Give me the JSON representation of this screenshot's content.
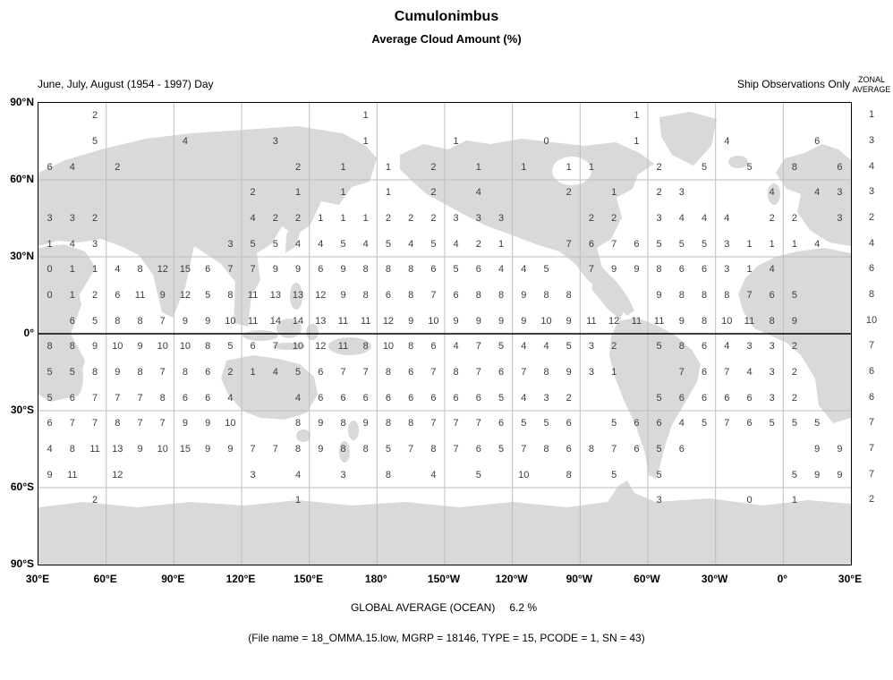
{
  "title": "Cumulonimbus",
  "subtitle": "Average Cloud Amount (%)",
  "period_label": "June, July, August (1954 - 1997) Day",
  "source_label": "Ship Observations Only",
  "zonal_header": {
    "line1": "ZONAL",
    "line2": "AVERAGE"
  },
  "global_average": {
    "label": "GLOBAL AVERAGE (OCEAN)",
    "value": "6.2 %"
  },
  "file_info": "(File name = 18_OMMA.15.low, MGRP = 18146, TYPE = 15, PCODE = 1, SN = 43)",
  "colors": {
    "land": "#d9d9d9",
    "grid": "#bdbdbd",
    "axis": "#000000",
    "value_text": "#3c3c3c"
  },
  "chart_data": {
    "type": "heatmap",
    "title": "Cumulonimbus — Average Cloud Amount (%)",
    "subtitle": "June, July, August (1954 - 1997) Day, Ship Observations Only",
    "units": "percent cloud amount",
    "grid_resolution_deg": 10,
    "lon_start": "30E",
    "x_tick_labels": [
      "30°E",
      "60°E",
      "90°E",
      "120°E",
      "150°E",
      "180°",
      "150°W",
      "120°W",
      "90°W",
      "60°W",
      "30°W",
      "0°",
      "30°E"
    ],
    "y_tick_labels": [
      "90°N",
      "60°N",
      "30°N",
      "0°",
      "30°S",
      "60°S",
      "90°S"
    ],
    "row_lat_centers": [
      85,
      75,
      65,
      55,
      45,
      35,
      25,
      15,
      5,
      -5,
      -15,
      -25,
      -35,
      -45,
      -55,
      -65
    ],
    "rows": [
      [
        null,
        null,
        2,
        null,
        null,
        null,
        null,
        null,
        null,
        null,
        null,
        null,
        null,
        null,
        1,
        null,
        null,
        null,
        null,
        null,
        null,
        null,
        null,
        null,
        null,
        null,
        1,
        null,
        null,
        null,
        null,
        null,
        null,
        null,
        null,
        null
      ],
      [
        null,
        null,
        5,
        null,
        null,
        null,
        4,
        null,
        null,
        null,
        3,
        null,
        null,
        null,
        1,
        null,
        null,
        null,
        1,
        null,
        null,
        null,
        0,
        null,
        null,
        null,
        1,
        null,
        null,
        null,
        4,
        null,
        null,
        null,
        6,
        null
      ],
      [
        6,
        4,
        null,
        2,
        null,
        null,
        null,
        null,
        null,
        null,
        null,
        2,
        null,
        1,
        null,
        1,
        null,
        2,
        null,
        1,
        null,
        1,
        null,
        1,
        1,
        null,
        null,
        2,
        null,
        5,
        null,
        5,
        null,
        8,
        null,
        6
      ],
      [
        null,
        null,
        null,
        null,
        null,
        null,
        null,
        null,
        null,
        2,
        null,
        1,
        null,
        1,
        null,
        1,
        null,
        2,
        null,
        4,
        null,
        null,
        null,
        2,
        null,
        1,
        null,
        2,
        3,
        null,
        null,
        null,
        4,
        null,
        4,
        3
      ],
      [
        3,
        3,
        2,
        null,
        null,
        null,
        null,
        null,
        null,
        4,
        2,
        2,
        1,
        1,
        1,
        2,
        2,
        2,
        3,
        3,
        3,
        null,
        null,
        null,
        2,
        2,
        null,
        3,
        4,
        4,
        4,
        null,
        2,
        2,
        null,
        3
      ],
      [
        1,
        4,
        3,
        null,
        null,
        null,
        null,
        null,
        3,
        5,
        5,
        4,
        4,
        5,
        4,
        5,
        4,
        5,
        4,
        2,
        1,
        null,
        null,
        7,
        6,
        7,
        6,
        5,
        5,
        5,
        3,
        1,
        1,
        1,
        4,
        null
      ],
      [
        0,
        1,
        1,
        4,
        8,
        12,
        15,
        6,
        7,
        7,
        9,
        9,
        6,
        9,
        8,
        8,
        8,
        6,
        5,
        6,
        4,
        4,
        5,
        null,
        7,
        9,
        9,
        8,
        6,
        6,
        3,
        1,
        4,
        null,
        null,
        null
      ],
      [
        0,
        1,
        2,
        6,
        11,
        9,
        12,
        5,
        8,
        11,
        13,
        13,
        12,
        9,
        8,
        6,
        8,
        7,
        6,
        8,
        8,
        9,
        8,
        8,
        null,
        null,
        null,
        9,
        8,
        8,
        8,
        7,
        6,
        5,
        null,
        null
      ],
      [
        null,
        6,
        5,
        8,
        8,
        7,
        9,
        9,
        10,
        11,
        14,
        14,
        13,
        11,
        11,
        12,
        9,
        10,
        9,
        9,
        9,
        9,
        10,
        9,
        11,
        12,
        11,
        11,
        9,
        8,
        10,
        11,
        8,
        9,
        null,
        null
      ],
      [
        8,
        8,
        9,
        10,
        9,
        10,
        10,
        8,
        5,
        6,
        7,
        10,
        12,
        11,
        8,
        10,
        8,
        6,
        4,
        7,
        5,
        4,
        4,
        5,
        3,
        2,
        null,
        5,
        8,
        6,
        4,
        3,
        3,
        2,
        null,
        null
      ],
      [
        5,
        5,
        8,
        9,
        8,
        7,
        8,
        6,
        2,
        1,
        4,
        5,
        6,
        7,
        7,
        8,
        6,
        7,
        8,
        7,
        6,
        7,
        8,
        9,
        3,
        1,
        null,
        null,
        7,
        6,
        7,
        4,
        3,
        2,
        null,
        null
      ],
      [
        5,
        6,
        7,
        7,
        7,
        8,
        6,
        6,
        4,
        null,
        null,
        4,
        6,
        6,
        6,
        6,
        6,
        6,
        6,
        6,
        5,
        4,
        3,
        2,
        null,
        null,
        null,
        5,
        6,
        6,
        6,
        6,
        3,
        2,
        null,
        null
      ],
      [
        6,
        7,
        7,
        8,
        7,
        7,
        9,
        9,
        10,
        null,
        null,
        8,
        9,
        8,
        9,
        8,
        8,
        7,
        7,
        7,
        6,
        5,
        5,
        6,
        null,
        5,
        6,
        6,
        4,
        5,
        7,
        6,
        5,
        5,
        5,
        null
      ],
      [
        4,
        8,
        11,
        13,
        9,
        10,
        15,
        9,
        9,
        7,
        7,
        8,
        9,
        8,
        8,
        5,
        7,
        8,
        7,
        6,
        5,
        7,
        8,
        6,
        8,
        7,
        6,
        5,
        6,
        null,
        null,
        null,
        null,
        null,
        9,
        9
      ],
      [
        9,
        11,
        null,
        12,
        null,
        null,
        null,
        null,
        null,
        3,
        null,
        4,
        null,
        3,
        null,
        8,
        null,
        4,
        null,
        5,
        null,
        10,
        null,
        8,
        null,
        5,
        null,
        5,
        null,
        null,
        null,
        null,
        null,
        5,
        9,
        9
      ],
      [
        null,
        null,
        2,
        null,
        null,
        null,
        null,
        null,
        null,
        null,
        null,
        1,
        null,
        null,
        null,
        null,
        null,
        null,
        null,
        null,
        null,
        null,
        null,
        null,
        null,
        null,
        null,
        3,
        null,
        null,
        null,
        0,
        null,
        1,
        null,
        null
      ]
    ],
    "zonal_averages": [
      1,
      3,
      4,
      3,
      2,
      4,
      6,
      8,
      10,
      7,
      6,
      6,
      7,
      7,
      7,
      2
    ],
    "global_average_ocean_pct": 6.2,
    "legend_position": "right-column-zonal-averages",
    "grid": true
  }
}
